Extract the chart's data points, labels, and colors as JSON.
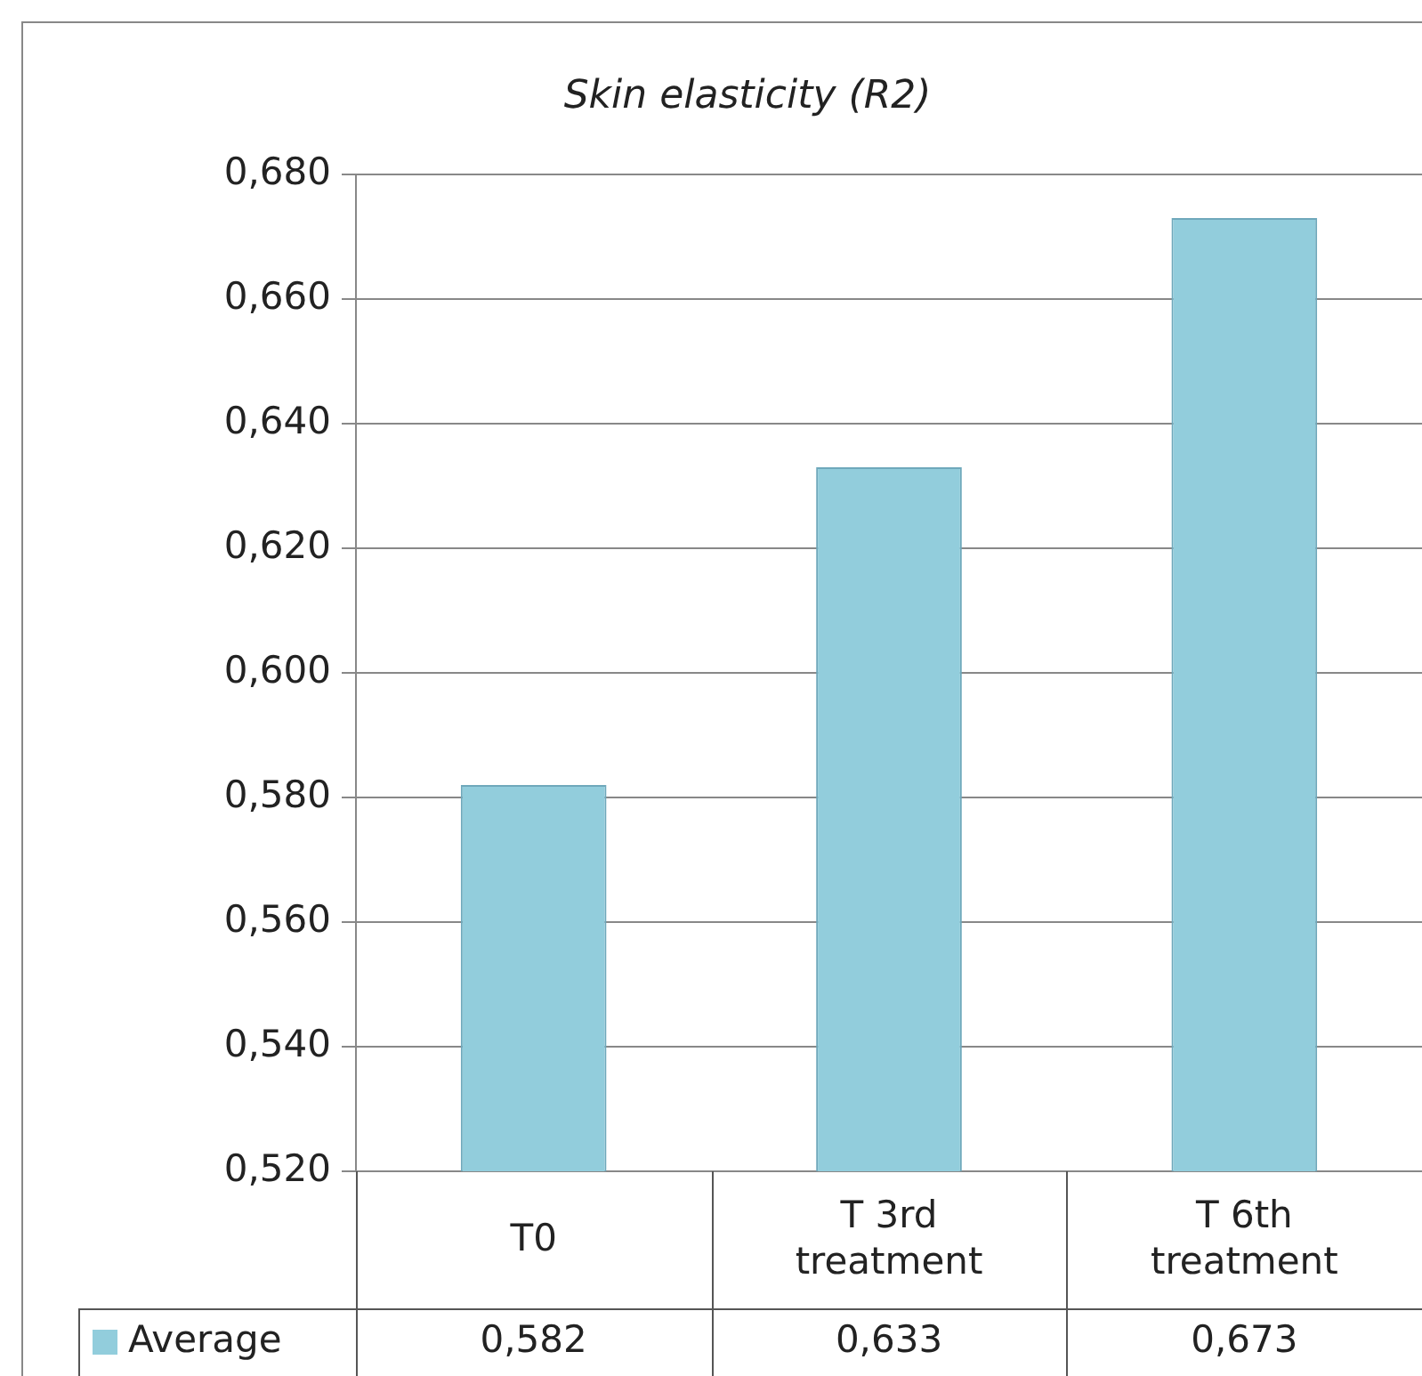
{
  "chart_data": {
    "type": "bar",
    "title": "Skin elasticity (R2)",
    "categories": [
      "T0",
      "T 3rd treatment",
      "T 6th treatment"
    ],
    "series": [
      {
        "name": "Average",
        "color": "#92cddc",
        "values": [
          0.582,
          0.633,
          0.673
        ],
        "value_labels": [
          "0,582",
          "0,633",
          "0,673"
        ]
      }
    ],
    "ylim": [
      0.52,
      0.68
    ],
    "yticks": [
      {
        "value": 0.52,
        "label": "0,520"
      },
      {
        "value": 0.54,
        "label": "0,540"
      },
      {
        "value": 0.56,
        "label": "0,560"
      },
      {
        "value": 0.58,
        "label": "0,580"
      },
      {
        "value": 0.6,
        "label": "0,600"
      },
      {
        "value": 0.62,
        "label": "0,620"
      },
      {
        "value": 0.64,
        "label": "0,640"
      },
      {
        "value": 0.66,
        "label": "0,660"
      },
      {
        "value": 0.68,
        "label": "0,680"
      }
    ],
    "grid": "y",
    "legend": "bottom left"
  }
}
